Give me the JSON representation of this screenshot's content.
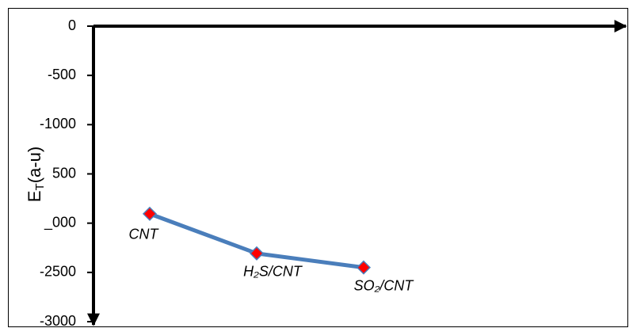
{
  "chart_data": {
    "type": "line",
    "ylabel": "E",
    "ylabel_sub": "T",
    "ylabel_rest": "(a-u)",
    "categories": [
      "CNT",
      "H₂S/CNT",
      "SO₂/CNT"
    ],
    "series": [
      {
        "color": "#4a7ebb",
        "marker_color": "#ff0000",
        "values": [
          -1905,
          -2307,
          -2450
        ]
      }
    ],
    "ylim": [
      -3000,
      0
    ],
    "yticks": [
      0,
      -500,
      -1000,
      {
        "value": -1500,
        "label": "500"
      },
      {
        "value": -2000,
        "label": "_000"
      },
      -2500,
      -3000
    ]
  }
}
